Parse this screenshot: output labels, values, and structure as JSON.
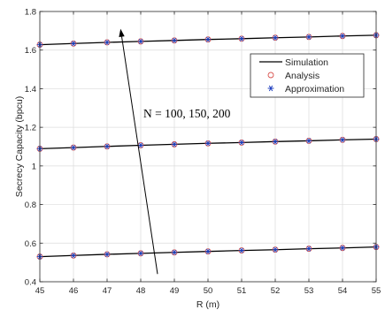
{
  "chart_data": {
    "type": "line",
    "xlabel": "R (m)",
    "ylabel": "Secrecy Capacity (bpcu)",
    "xlim": [
      45,
      55
    ],
    "ylim": [
      0.4,
      1.8
    ],
    "xticks": [
      45,
      46,
      47,
      48,
      49,
      50,
      51,
      52,
      53,
      54,
      55
    ],
    "yticks": [
      0.4,
      0.6,
      0.8,
      1.0,
      1.2,
      1.4,
      1.6,
      1.8
    ],
    "xtick_labels": [
      "45",
      "46",
      "47",
      "48",
      "49",
      "50",
      "51",
      "52",
      "53",
      "54",
      "55"
    ],
    "ytick_labels": [
      "0.4",
      "0.6",
      "0.8",
      "1",
      "1.2",
      "1.4",
      "1.6",
      "1.8"
    ],
    "grid": true,
    "legend_position": "top-right",
    "x": [
      45,
      46,
      47,
      48,
      49,
      50,
      51,
      52,
      53,
      54,
      55
    ],
    "curves": [
      [
        0.53,
        0.536,
        0.542,
        0.547,
        0.552,
        0.557,
        0.562,
        0.566,
        0.571,
        0.575,
        0.58
      ],
      [
        1.089,
        1.095,
        1.101,
        1.107,
        1.112,
        1.117,
        1.121,
        1.126,
        1.13,
        1.135,
        1.139
      ],
      [
        1.628,
        1.634,
        1.64,
        1.645,
        1.65,
        1.655,
        1.659,
        1.664,
        1.668,
        1.673,
        1.677
      ]
    ],
    "series": [
      {
        "name": "Simulation",
        "style": "solid-line",
        "color": "#000000"
      },
      {
        "name": "Analysis",
        "style": "circle-marker",
        "color": "#d9534f"
      },
      {
        "name": "Approximation",
        "style": "star-marker",
        "color": "#1f3fbf"
      }
    ],
    "annotation": {
      "text": "N = 100, 150, 200",
      "arrow_from": [
        48.5,
        0.44
      ],
      "arrow_to": [
        47.4,
        1.71
      ]
    }
  }
}
